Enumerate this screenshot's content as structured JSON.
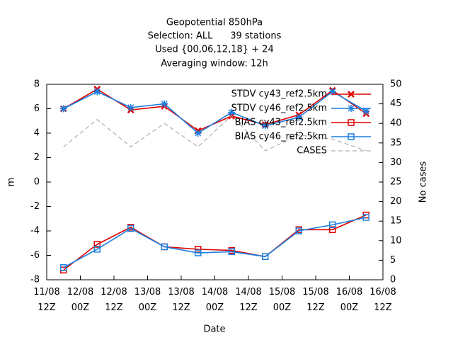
{
  "chart_data": {
    "type": "line",
    "title": "Geopotential 850hPa",
    "subtitle": [
      "Selection: ALL      39 stations",
      "Used {00,06,12,18} + 24",
      "Averaging window: 12h"
    ],
    "xlabel": "Date",
    "ylabel": "m",
    "y2label": "No cases",
    "x": [
      6,
      18,
      30,
      42,
      54,
      66,
      78,
      90,
      102,
      114
    ],
    "xlim": [
      0,
      120
    ],
    "xticks": [
      {
        "value": 0,
        "label": "11/08\n12Z"
      },
      {
        "value": 12,
        "label": "12/08\n00Z"
      },
      {
        "value": 24,
        "label": "12/08\n12Z"
      },
      {
        "value": 36,
        "label": "13/08\n00Z"
      },
      {
        "value": 48,
        "label": "13/08\n12Z"
      },
      {
        "value": 60,
        "label": "14/08\n00Z"
      },
      {
        "value": 72,
        "label": "14/08\n12Z"
      },
      {
        "value": 84,
        "label": "15/08\n00Z"
      },
      {
        "value": 96,
        "label": "15/08\n12Z"
      },
      {
        "value": 108,
        "label": "16/08\n00Z"
      },
      {
        "value": 120,
        "label": "16/08\n12Z"
      }
    ],
    "ylim": [
      -8,
      8
    ],
    "yticks": [
      -8,
      -6,
      -4,
      -2,
      0,
      2,
      4,
      6,
      8
    ],
    "y2lim": [
      0,
      50
    ],
    "y2ticks": [
      0,
      5,
      10,
      15,
      20,
      25,
      30,
      35,
      40,
      45,
      50
    ],
    "legend": "upper right",
    "series": [
      {
        "name": "STDV cy43_ref2.5km",
        "color": "#e00000",
        "marker": "cross",
        "values": [
          6.0,
          7.6,
          5.9,
          6.2,
          4.2,
          5.4,
          4.7,
          5.5,
          7.5,
          5.6
        ]
      },
      {
        "name": "STDV cy46_ref2.5km",
        "color": "#1a7fe0",
        "marker": "star",
        "values": [
          6.0,
          7.4,
          6.1,
          6.4,
          4.0,
          5.7,
          4.6,
          5.3,
          7.4,
          5.8
        ]
      },
      {
        "name": "BIAS cy43_ref2.5km",
        "color": "#e00000",
        "marker": "square",
        "values": [
          -7.2,
          -5.1,
          -3.7,
          -5.3,
          -5.5,
          -5.6,
          -6.1,
          -3.9,
          -3.9,
          -2.7
        ]
      },
      {
        "name": "BIAS cy46_ref2.5km",
        "color": "#1a7fe0",
        "marker": "square",
        "values": [
          -7.0,
          -5.5,
          -3.8,
          -5.3,
          -5.8,
          -5.7,
          -6.1,
          -4.0,
          -3.5,
          -2.9
        ]
      },
      {
        "name": "CASES",
        "color": "#a0a0a0",
        "marker": "none",
        "dash": true,
        "axis": "y2",
        "values": [
          34,
          41,
          34,
          40,
          34,
          42,
          33,
          37,
          36,
          33
        ]
      }
    ]
  }
}
